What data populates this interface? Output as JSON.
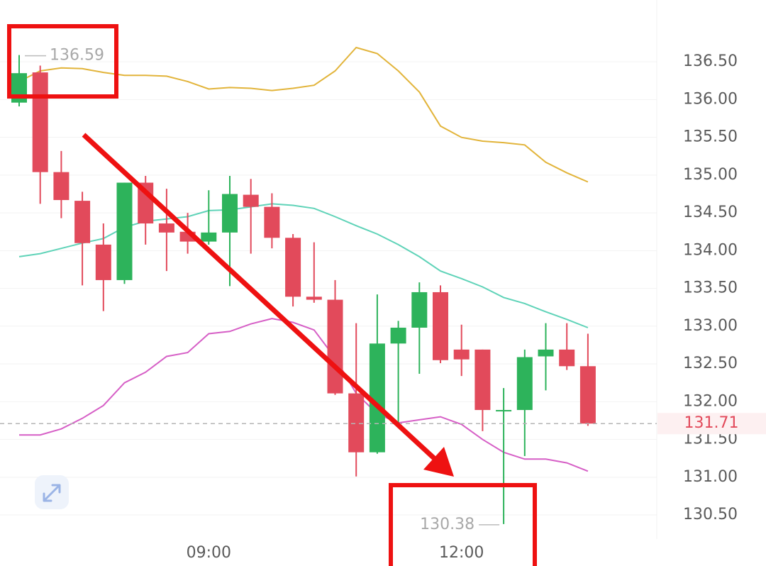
{
  "chart_data": {
    "type": "candlestick",
    "categories": [
      null,
      null,
      null,
      null,
      null,
      null,
      null,
      null,
      null,
      "09:00",
      null,
      null,
      null,
      null,
      null,
      null,
      null,
      null,
      null,
      null,
      null,
      "12:00",
      null,
      null,
      null,
      null,
      null,
      null
    ],
    "open": [
      135.96,
      136.36,
      135.04,
      134.66,
      134.08,
      133.61,
      134.9,
      134.36,
      134.25,
      134.12,
      134.24,
      134.74,
      134.58,
      134.17,
      133.39,
      133.35,
      132.11,
      131.33,
      132.77,
      132.98,
      133.45,
      132.69,
      132.69,
      131.88,
      131.89,
      132.6,
      132.69,
      132.47
    ],
    "high": [
      136.59,
      136.45,
      135.32,
      134.78,
      134.36,
      134.9,
      134.99,
      134.82,
      134.5,
      134.8,
      134.99,
      134.95,
      134.76,
      134.22,
      134.11,
      133.61,
      133.04,
      133.42,
      133.07,
      133.58,
      133.54,
      133.02,
      132.69,
      132.18,
      132.69,
      133.04,
      133.04,
      132.9
    ],
    "low": [
      135.91,
      134.62,
      134.43,
      133.54,
      133.2,
      133.56,
      134.08,
      133.73,
      133.96,
      134.08,
      133.53,
      133.96,
      134.03,
      133.26,
      133.31,
      132.09,
      131.01,
      131.31,
      131.7,
      132.37,
      132.51,
      132.34,
      131.61,
      130.38,
      131.28,
      132.15,
      132.42,
      131.68
    ],
    "close": [
      136.35,
      135.04,
      134.67,
      134.1,
      133.61,
      134.9,
      134.36,
      134.24,
      134.12,
      134.24,
      134.75,
      134.58,
      134.17,
      133.39,
      133.35,
      132.11,
      131.33,
      132.77,
      132.98,
      133.45,
      132.55,
      132.56,
      131.89,
      131.89,
      132.59,
      132.69,
      132.47,
      131.71
    ],
    "up_color": "#2db35b",
    "down_color": "#e24a5b",
    "series": [
      {
        "color": "#e2b43a",
        "values": [
          136.24,
          136.38,
          136.42,
          136.41,
          136.36,
          136.32,
          136.32,
          136.31,
          136.24,
          136.14,
          136.16,
          136.15,
          136.12,
          136.15,
          136.19,
          136.38,
          136.69,
          136.61,
          136.38,
          136.1,
          135.65,
          135.5,
          135.45,
          135.43,
          135.4,
          135.17,
          135.03,
          134.91
        ]
      },
      {
        "color": "#5fd3b8",
        "values": [
          133.92,
          133.96,
          134.03,
          134.1,
          134.16,
          134.31,
          134.39,
          134.42,
          134.45,
          134.53,
          134.54,
          134.58,
          134.62,
          134.6,
          134.56,
          134.45,
          134.33,
          134.22,
          134.08,
          133.92,
          133.73,
          133.63,
          133.52,
          133.38,
          133.3,
          133.19,
          133.09,
          132.98
        ]
      },
      {
        "color": "#d65fc6",
        "values": [
          131.56,
          131.56,
          131.64,
          131.78,
          131.95,
          132.25,
          132.39,
          132.6,
          132.65,
          132.9,
          132.93,
          133.03,
          133.1,
          133.05,
          132.95,
          132.58,
          132.11,
          131.84,
          131.72,
          131.76,
          131.8,
          131.7,
          131.5,
          131.33,
          131.24,
          131.24,
          131.19,
          131.08
        ]
      }
    ],
    "ylim": [
      130.2,
      137.3
    ],
    "yticks": [
      {
        "value": 130.5,
        "label": "130.50"
      },
      {
        "value": 131,
        "label": "131.00"
      },
      {
        "value": 131.5,
        "label": "131.50"
      },
      {
        "value": 132,
        "label": "132.00"
      },
      {
        "value": 132.5,
        "label": "132.50"
      },
      {
        "value": 133,
        "label": "133.00"
      },
      {
        "value": 133.5,
        "label": "133.50"
      },
      {
        "value": 134,
        "label": "134.00"
      },
      {
        "value": 134.5,
        "label": "134.50"
      },
      {
        "value": 135,
        "label": "135.00"
      },
      {
        "value": 135.5,
        "label": "135.50"
      },
      {
        "value": 136,
        "label": "136.00"
      },
      {
        "value": 136.5,
        "label": "136.50"
      }
    ],
    "grid": true
  }
}
